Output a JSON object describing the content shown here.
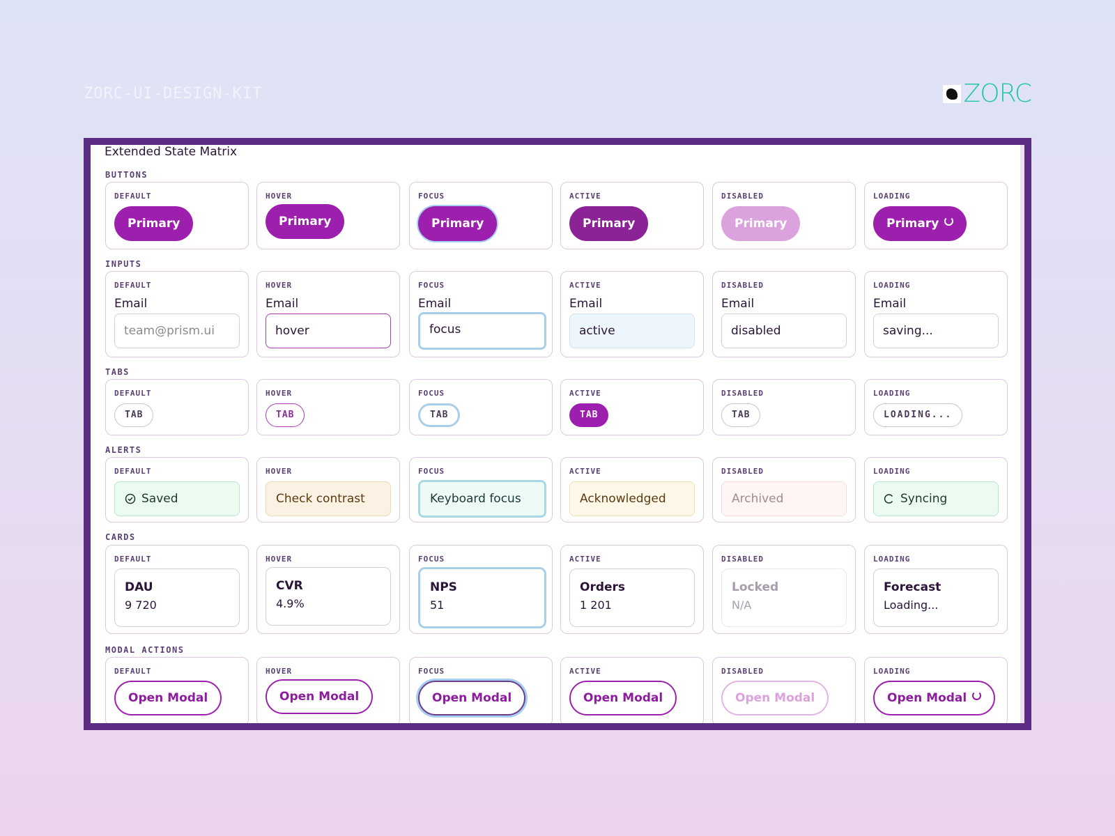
{
  "header": {
    "kit": "ZORC-UI-DESIGN-KIT",
    "logo": "ZORC"
  },
  "panel": {
    "title": "Extended State Matrix",
    "states": [
      "DEFAULT",
      "HOVER",
      "FOCUS",
      "ACTIVE",
      "DISABLED",
      "LOADING"
    ],
    "sections": [
      {
        "label": "BUTTONS",
        "cells": [
          {
            "text": "Primary"
          },
          {
            "text": "Primary"
          },
          {
            "text": "Primary"
          },
          {
            "text": "Primary"
          },
          {
            "text": "Primary"
          },
          {
            "text": "Primary"
          }
        ]
      },
      {
        "label": "INPUTS",
        "cells": [
          {
            "label": "Email",
            "value": "team@prism.ui"
          },
          {
            "label": "Email",
            "value": "hover"
          },
          {
            "label": "Email",
            "value": "focus"
          },
          {
            "label": "Email",
            "value": "active"
          },
          {
            "label": "Email",
            "value": "disabled"
          },
          {
            "label": "Email",
            "value": "saving..."
          }
        ]
      },
      {
        "label": "TABS",
        "cells": [
          {
            "text": "TAB"
          },
          {
            "text": "TAB"
          },
          {
            "text": "TAB"
          },
          {
            "text": "TAB"
          },
          {
            "text": "TAB"
          },
          {
            "text": "LOADING..."
          }
        ]
      },
      {
        "label": "ALERTS",
        "cells": [
          {
            "text": "Saved"
          },
          {
            "text": "Check contrast"
          },
          {
            "text": "Keyboard focus"
          },
          {
            "text": "Acknowledged"
          },
          {
            "text": "Archived"
          },
          {
            "text": "Syncing"
          }
        ]
      },
      {
        "label": "CARDS",
        "cells": [
          {
            "title": "DAU",
            "value": "9 720"
          },
          {
            "title": "CVR",
            "value": "4.9%"
          },
          {
            "title": "NPS",
            "value": "51"
          },
          {
            "title": "Orders",
            "value": "1 201"
          },
          {
            "title": "Locked",
            "value": "N/A"
          },
          {
            "title": "Forecast",
            "value": "Loading..."
          }
        ]
      },
      {
        "label": "MODAL ACTIONS",
        "cells": [
          {
            "text": "Open Modal"
          },
          {
            "text": "Open Modal"
          },
          {
            "text": "Open Modal"
          },
          {
            "text": "Open Modal"
          },
          {
            "text": "Open Modal"
          },
          {
            "text": "Open Modal"
          }
        ]
      }
    ]
  }
}
